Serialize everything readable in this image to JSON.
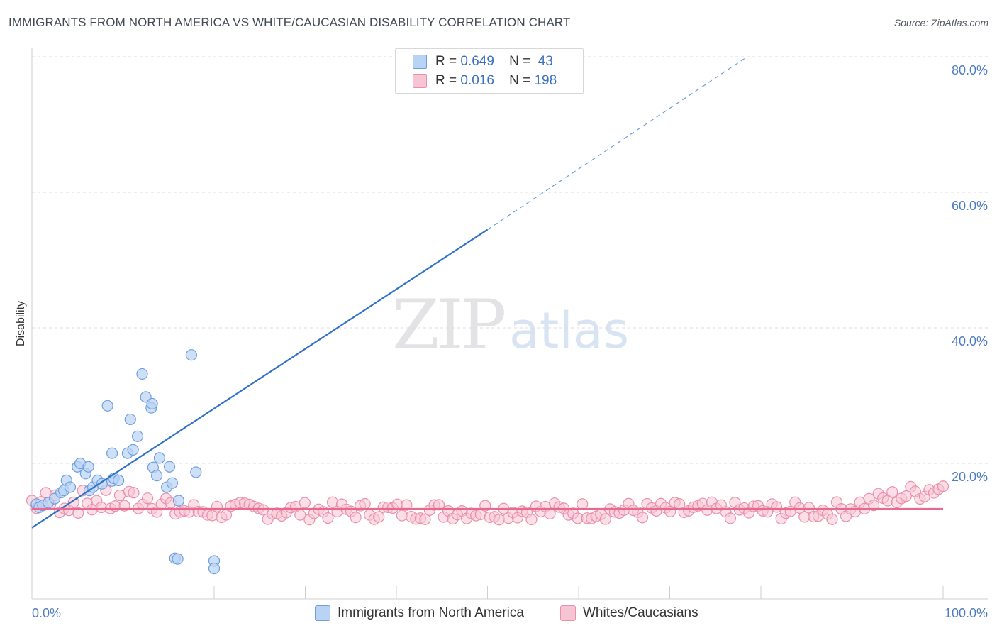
{
  "title": "IMMIGRANTS FROM NORTH AMERICA VS WHITE/CAUCASIAN DISABILITY CORRELATION CHART",
  "source": "Source: ZipAtlas.com",
  "watermark": {
    "zip": "ZIP",
    "atlas": "atlas"
  },
  "legend": {
    "rows": [
      {
        "r_label": "R = ",
        "r_value": "0.649",
        "n_label": "N = ",
        "n_value": " 43"
      },
      {
        "r_label": "R = ",
        "r_value": "0.016",
        "n_label": "N = ",
        "n_value": "198"
      }
    ]
  },
  "bottom_legend": [
    "Immigrants from North America",
    "Whites/Caucasians"
  ],
  "colors": {
    "blue_fill": "#b9d3f5",
    "blue_stroke": "#6f9fdc",
    "blue_line": "#2f72c8",
    "pink_fill": "#f7c4d4",
    "pink_stroke": "#ea8fae",
    "pink_line": "#e8688f",
    "grid": "#dddddd",
    "axis_text": "#4d7cc2"
  },
  "chart_data": {
    "type": "scatter",
    "title": "IMMIGRANTS FROM NORTH AMERICA VS WHITE/CAUCASIAN DISABILITY CORRELATION CHART",
    "xlabel": "",
    "ylabel": "Disability",
    "xlim": [
      0,
      100
    ],
    "ylim": [
      0,
      80
    ],
    "x_tick_labels": [
      "0.0%",
      "100.0%"
    ],
    "y_ticks": [
      20,
      40,
      60,
      80
    ],
    "y_tick_labels": [
      "20.0%",
      "40.0%",
      "60.0%",
      "80.0%"
    ],
    "series": [
      {
        "name": "Immigrants from North America",
        "r": 0.649,
        "n": 43,
        "trend": {
          "x0": 0,
          "y0": 10.5,
          "x1": 50,
          "y1": 54.5,
          "dashed_to_x": 78.5,
          "dashed_to_y": 80
        },
        "points": [
          [
            0.5,
            14
          ],
          [
            0.8,
            13.5
          ],
          [
            1.2,
            13.8
          ],
          [
            1.8,
            14.2
          ],
          [
            2.5,
            14.8
          ],
          [
            3.2,
            15.7
          ],
          [
            3.5,
            16
          ],
          [
            3.8,
            17.5
          ],
          [
            4.2,
            16.5
          ],
          [
            5.0,
            19.5
          ],
          [
            5.3,
            20.0
          ],
          [
            5.9,
            18.5
          ],
          [
            6.2,
            19.5
          ],
          [
            6.3,
            16
          ],
          [
            6.7,
            16.5
          ],
          [
            7.2,
            17.5
          ],
          [
            7.7,
            17.0
          ],
          [
            8.3,
            28.5
          ],
          [
            8.8,
            21.5
          ],
          [
            8.8,
            17.4
          ],
          [
            9.0,
            17.8
          ],
          [
            9.5,
            17.5
          ],
          [
            10.5,
            21.5
          ],
          [
            10.8,
            26.5
          ],
          [
            11.1,
            22.0
          ],
          [
            11.6,
            24.0
          ],
          [
            12.1,
            33.2
          ],
          [
            12.5,
            29.8
          ],
          [
            13.1,
            28.2
          ],
          [
            13.2,
            28.8
          ],
          [
            13.3,
            19.4
          ],
          [
            13.7,
            18.2
          ],
          [
            14.0,
            20.8
          ],
          [
            14.8,
            16.5
          ],
          [
            15.1,
            19.5
          ],
          [
            15.4,
            17.1
          ],
          [
            15.7,
            6.0
          ],
          [
            16.0,
            5.9
          ],
          [
            16.1,
            14.5
          ],
          [
            17.5,
            36.0
          ],
          [
            18.0,
            18.7
          ],
          [
            20.0,
            5.6
          ],
          [
            20.0,
            4.5
          ]
        ],
        "raw_note": ""
      },
      {
        "name": "Whites/Caucasians",
        "r": 0.016,
        "n": 198,
        "trend": {
          "x0": 0,
          "y0": 13.3,
          "x1": 100,
          "y1": 13.3
        }
      }
    ]
  }
}
